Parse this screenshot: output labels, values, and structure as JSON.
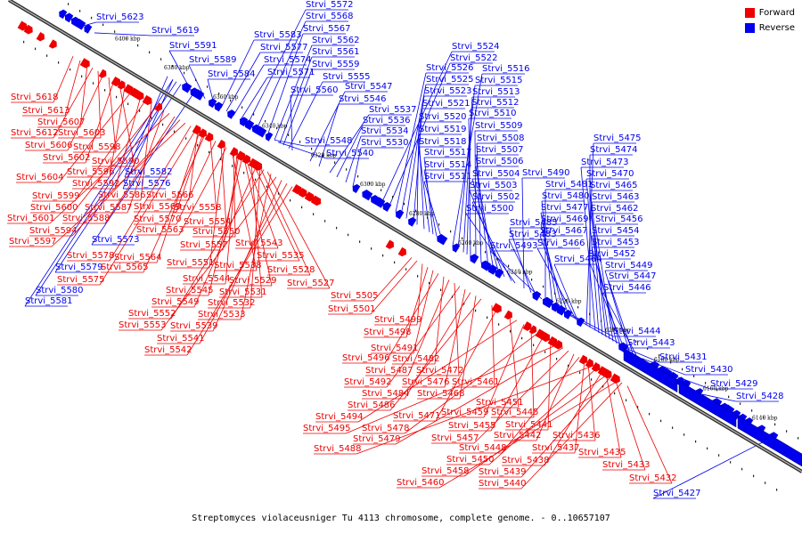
{
  "legend": {
    "forward": {
      "label": "Forward",
      "color": "#ee0000"
    },
    "reverse": {
      "label": "Reverse",
      "color": "#0000ee"
    }
  },
  "caption": "Streptomyces violaceusniger Tu 4113 chromosome, complete genome. - 0..10657107",
  "ruler": [
    "6400 kbp",
    "6380 kbp",
    "6360 kbp",
    "6340 kbp",
    "6320 kbp",
    "6300 kbp",
    "6280 kbp",
    "6260 kbp",
    "6240 kbp",
    "6220 kbp",
    "6200 kbp",
    "6180 kbp",
    "6160 kbp",
    "6140 kbp"
  ],
  "reverse_genes": [
    "Strvi_5623",
    "Strvi_5619",
    "Strvi_5591",
    "Strvi_5589",
    "Strvi_5584",
    "Strvi_5583",
    "Strvi_5577",
    "Strvi_5574",
    "Strvi_5571",
    "Strvi_5572",
    "Strvi_5568",
    "Strvi_5567",
    "Strvi_5562",
    "Strvi_5561",
    "Strvi_5559",
    "Strvi_5555",
    "Strvi_5560",
    "Strvi_5547",
    "Strvi_5546",
    "Strvi_5537",
    "Strvi_5536",
    "Strvi_5534",
    "Strvi_5530",
    "Strvi_5548",
    "Strvi_5540",
    "Strvi_5524",
    "Strvi_5522",
    "Strvi_5526",
    "Strvi_5525",
    "Strvi_5523",
    "Strvi_5521",
    "Strvi_5520",
    "Strvi_5519",
    "Strvi_5518",
    "Strvi_5517",
    "Strvi_5514",
    "Strvi_5511",
    "Strvi_5516",
    "Strvi_5515",
    "Strvi_5513",
    "Strvi_5512",
    "Strvi_5510",
    "Strvi_5509",
    "Strvi_5508",
    "Strvi_5507",
    "Strvi_5506",
    "Strvi_5504",
    "Strvi_5503",
    "Strvi_5502",
    "Strvi_5500",
    "Strvi_5490",
    "Strvi_5485",
    "Strvi_5483",
    "Strvi_5493",
    "Strvi_5481",
    "Strvi_5480",
    "Strvi_5477",
    "Strvi_5469",
    "Strvi_5467",
    "Strvi_5466",
    "Strvi_5464",
    "Strvi_5475",
    "Strvi_5474",
    "Strvi_5473",
    "Strvi_5470",
    "Strvi_5465",
    "Strvi_5463",
    "Strvi_5462",
    "Strvi_5456",
    "Strvi_5454",
    "Strvi_5453",
    "Strvi_5452",
    "Strvi_5449",
    "Strvi_5447",
    "Strvi_5446",
    "Strvi_5444",
    "Strvi_5443",
    "Strvi_5431",
    "Strvi_5430",
    "Strvi_5429",
    "Strvi_5428",
    "Strvi_5427",
    "Strvi_5582",
    "Strvi_5576",
    "Strvi_5573",
    "Strvi_5579",
    "Strvi_5580",
    "Strvi_5581"
  ],
  "forward_genes": [
    "Strvi_5618",
    "Strvi_5613",
    "Strvi_5607",
    "Strvi_5612",
    "Strvi_5603",
    "Strvi_5606",
    "Strvi_5598",
    "Strvi_5602",
    "Strvi_5590",
    "Strvi_5596",
    "Strvi_5604",
    "Strvi_5592",
    "Strvi_5599",
    "Strvi_5586",
    "Strvi_5600",
    "Strvi_5587",
    "Strvi_5601",
    "Strvi_5588",
    "Strvi_5594",
    "Strvi_5597",
    "Strvi_5566",
    "Strvi_5569",
    "Strvi_5558",
    "Strvi_5570",
    "Strvi_5554",
    "Strvi_5563",
    "Strvi_5550",
    "Strvi_5557",
    "Strvi_5543",
    "Strvi_5578",
    "Strvi_5564",
    "Strvi_5565",
    "Strvi_5575",
    "Strvi_5535",
    "Strvi_5551",
    "Strvi_5538",
    "Strvi_5528",
    "Strvi_5544",
    "Strvi_5529",
    "Strvi_5527",
    "Strvi_5545",
    "Strvi_5531",
    "Strvi_5549",
    "Strvi_5532",
    "Strvi_5552",
    "Strvi_5533",
    "Strvi_5553",
    "Strvi_5539",
    "Strvi_5541",
    "Strvi_5542",
    "Strvi_5505",
    "Strvi_5501",
    "Strvi_5499",
    "Strvi_5498",
    "Strvi_5491",
    "Strvi_5496",
    "Strvi_5482",
    "Strvi_5487",
    "Strvi_5472",
    "Strvi_5492",
    "Strvi_5476",
    "Strvi_5484",
    "Strvi_5468",
    "Strvi_5486",
    "Strvi_5461",
    "Strvi_5471",
    "Strvi_5451",
    "Strvi_5494",
    "Strvi_5459",
    "Strvi_5445",
    "Strvi_5478",
    "Strvi_5455",
    "Strvi_5441",
    "Strvi_5495",
    "Strvi_5479",
    "Strvi_5457",
    "Strvi_5442",
    "Strvi_5448",
    "Strvi_5437",
    "Strvi_5436",
    "Strvi_5488",
    "Strvi_5450",
    "Strvi_5438",
    "Strvi_5435",
    "Strvi_5458",
    "Strvi_5439",
    "Strvi_5433",
    "Strvi_5460",
    "Strvi_5440",
    "Strvi_5432"
  ]
}
